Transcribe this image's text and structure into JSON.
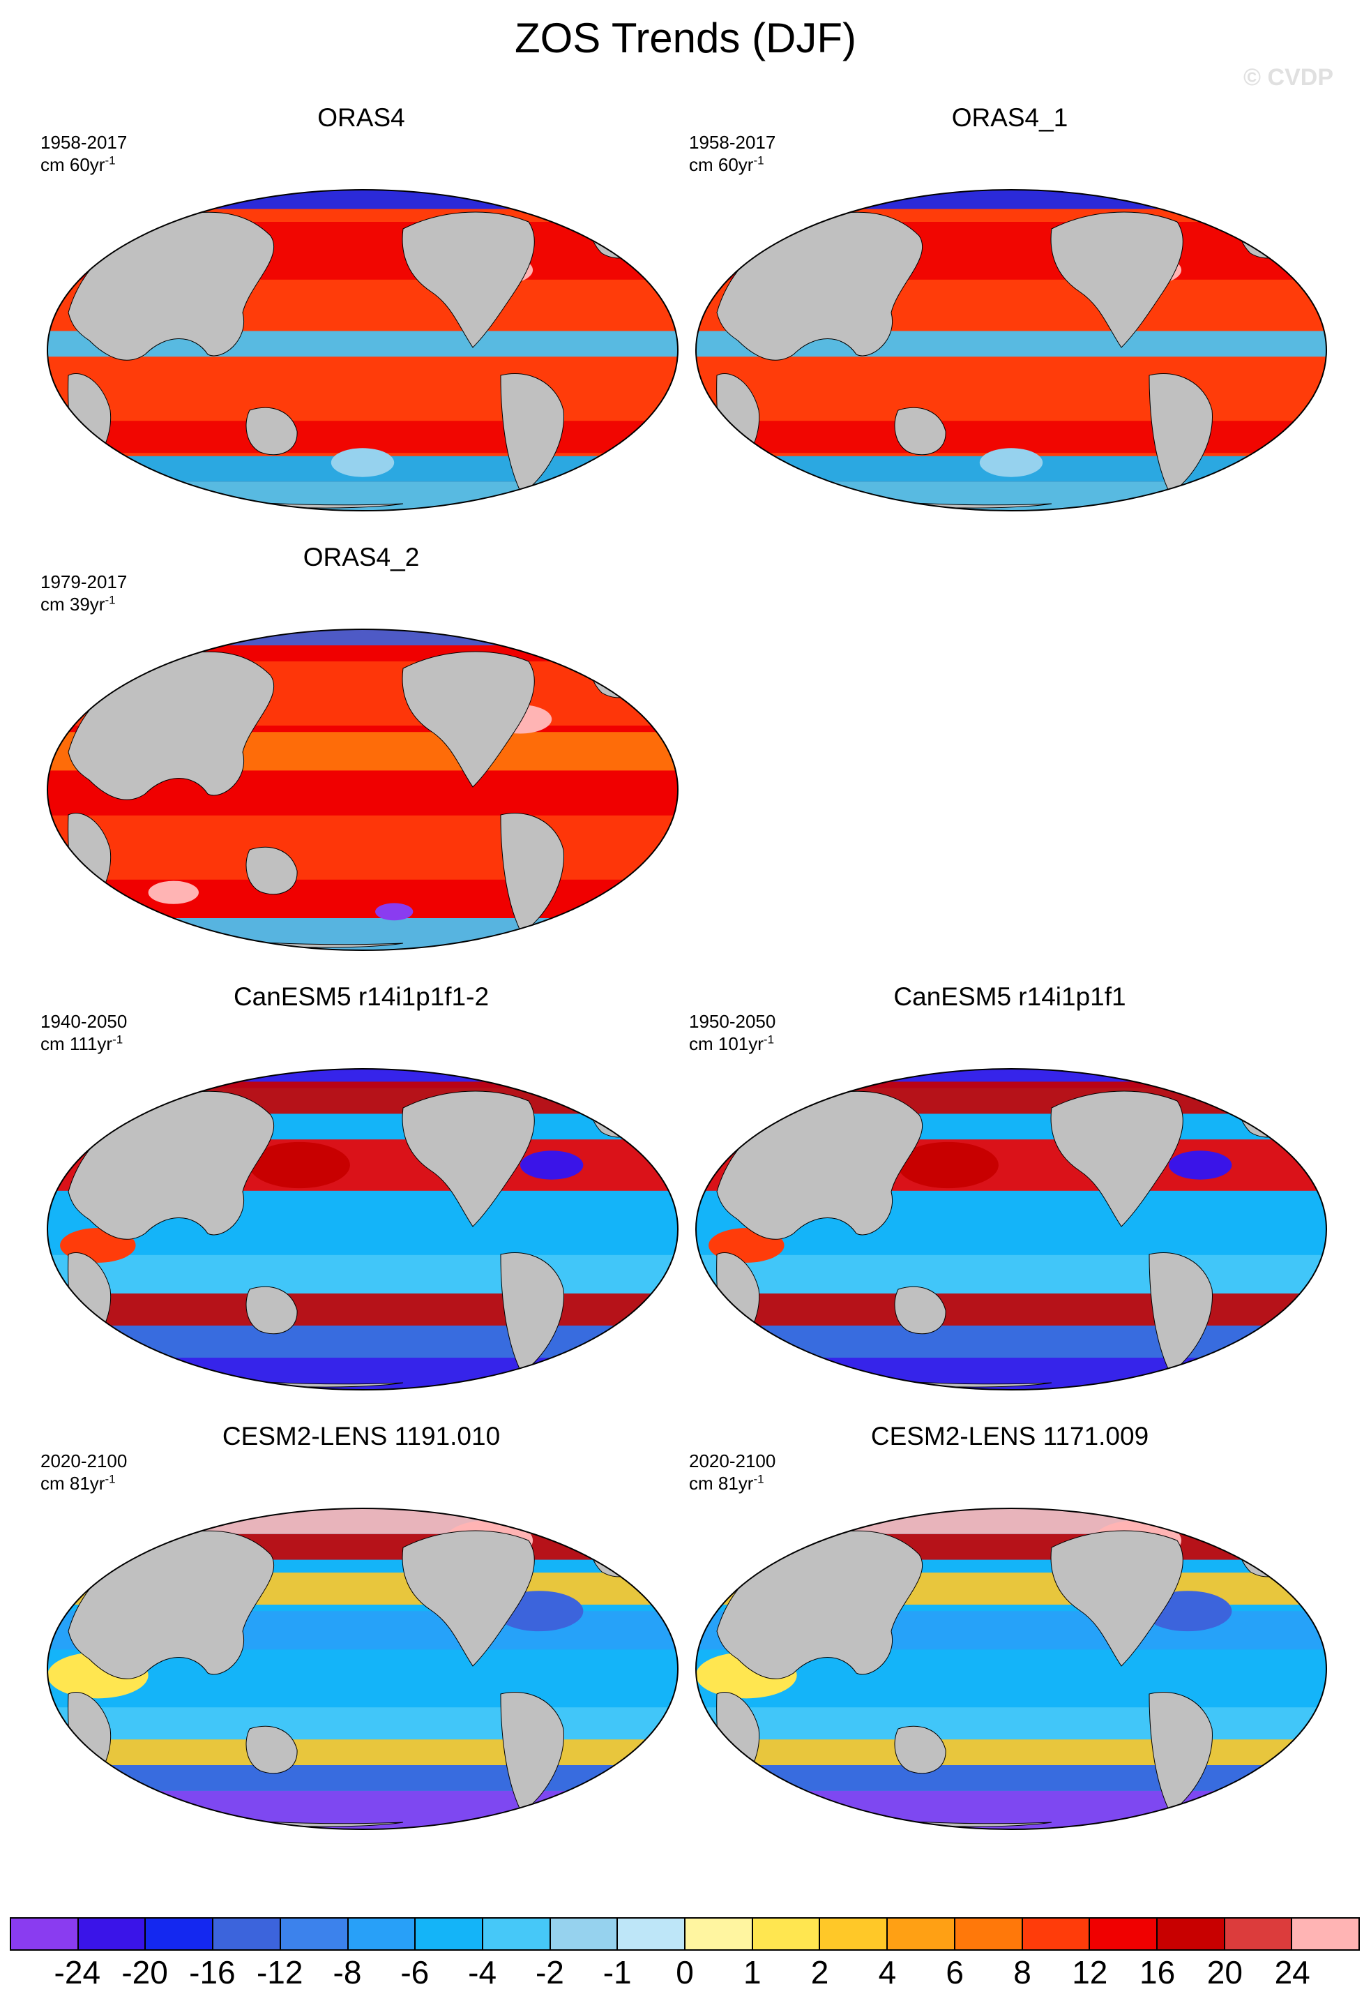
{
  "figure": {
    "title": "ZOS Trends (DJF)",
    "watermark": "© CVDP"
  },
  "panels": [
    {
      "title": "ORAS4",
      "period": "1958-2017",
      "units_prefix": "cm 60yr",
      "units_exp": "-1",
      "pattern": "oras_a"
    },
    {
      "title": "ORAS4_1",
      "period": "1958-2017",
      "units_prefix": "cm 60yr",
      "units_exp": "-1",
      "pattern": "oras_a"
    },
    {
      "title": "ORAS4_2",
      "period": "1979-2017",
      "units_prefix": "cm 39yr",
      "units_exp": "-1",
      "pattern": "oras_b"
    },
    {
      "title": "CanESM5 r14i1p1f1-2",
      "period": "1940-2050",
      "units_prefix": "cm 111yr",
      "units_exp": "-1",
      "pattern": "canesm"
    },
    {
      "title": "CanESM5 r14i1p1f1",
      "period": "1950-2050",
      "units_prefix": "cm 101yr",
      "units_exp": "-1",
      "pattern": "canesm"
    },
    {
      "title": "CESM2-LENS 1191.010",
      "period": "2020-2100",
      "units_prefix": "cm 81yr",
      "units_exp": "-1",
      "pattern": "cesm"
    },
    {
      "title": "CESM2-LENS 1171.009",
      "period": "2020-2100",
      "units_prefix": "cm 81yr",
      "units_exp": "-1",
      "pattern": "cesm"
    }
  ],
  "colorbar": {
    "labels": [
      "-24",
      "-20",
      "-16",
      "-12",
      "-8",
      "-6",
      "-4",
      "-2",
      "-1",
      "0",
      "1",
      "2",
      "4",
      "6",
      "8",
      "12",
      "16",
      "20",
      "24"
    ],
    "colors": [
      "#8a3cf0",
      "#3a14e8",
      "#1428f0",
      "#3c64dc",
      "#3c82ec",
      "#28a0f8",
      "#14b4f8",
      "#46c8f8",
      "#96d2ee",
      "#bee6f8",
      "#fff5a0",
      "#ffe650",
      "#ffc828",
      "#ffa014",
      "#ff780a",
      "#ff3c0a",
      "#f00000",
      "#c80000",
      "#dc3c3c",
      "#ffb4b4"
    ]
  },
  "map_colors": {
    "land": "#c0c0c0",
    "outline": "#000000"
  }
}
